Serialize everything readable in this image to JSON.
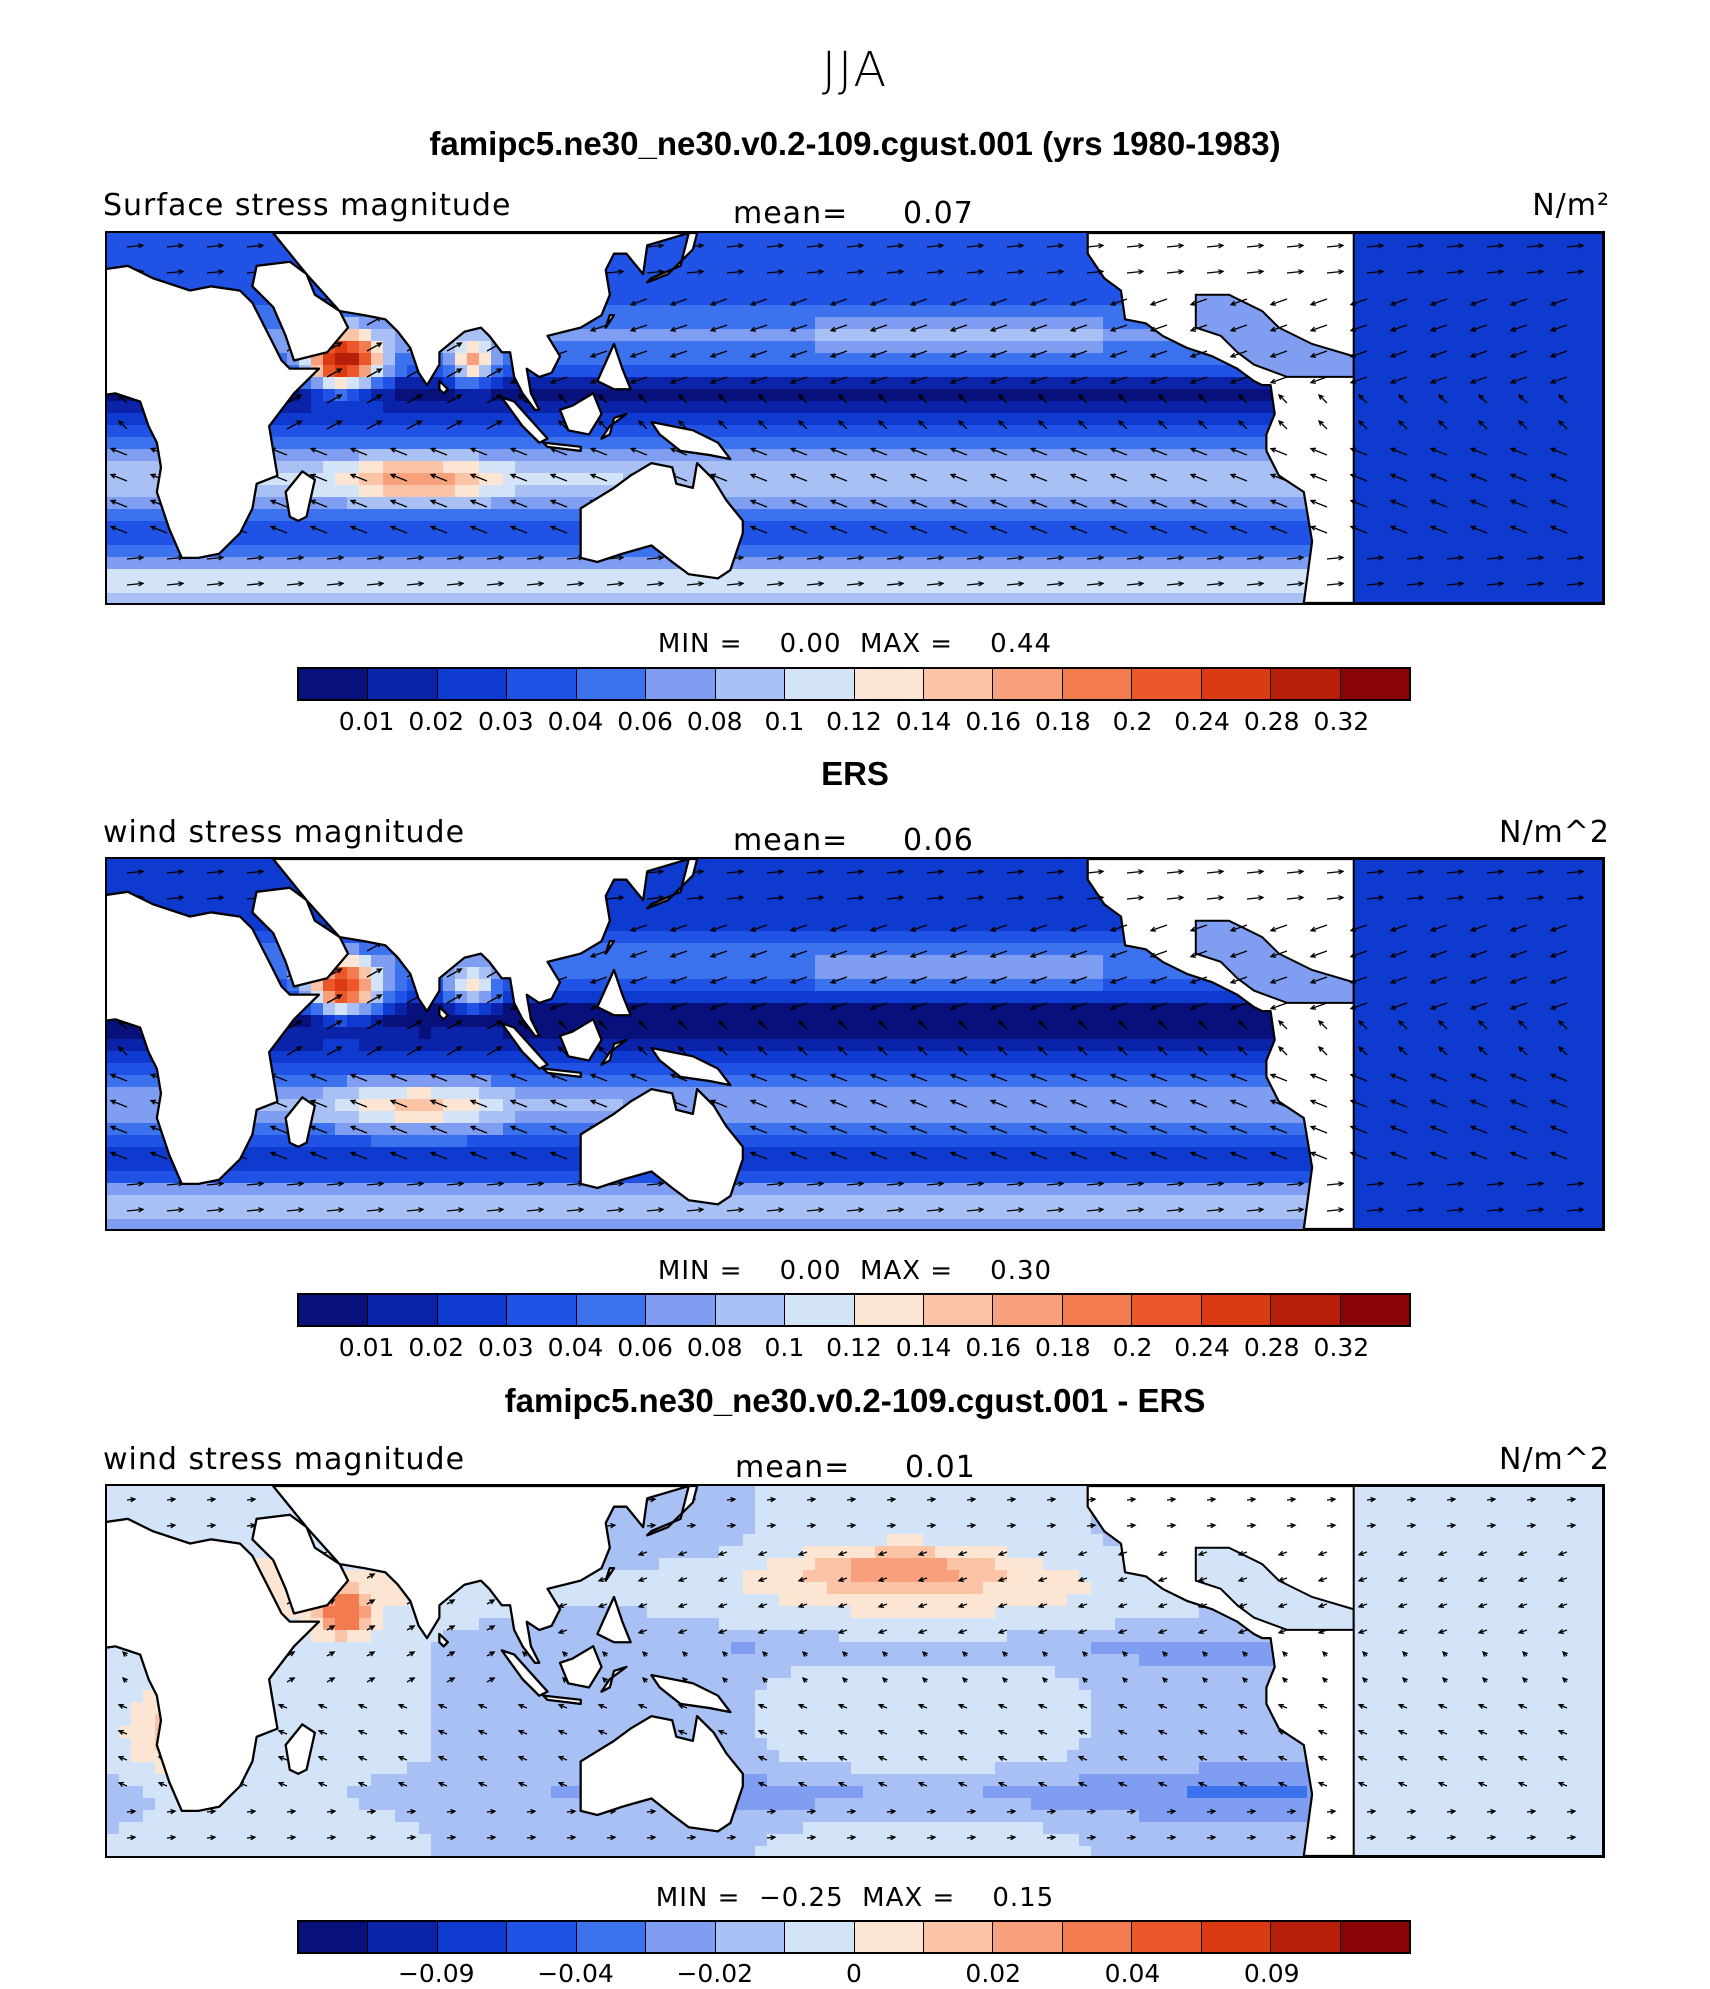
{
  "page_title": "JJA",
  "colors": {
    "scale": [
      "#08107c",
      "#0a23a8",
      "#0f3ad0",
      "#2052e6",
      "#3c72ee",
      "#7f9ef2",
      "#a9c0f4",
      "#d4e4f8",
      "#fde5d4",
      "#fbc4a6",
      "#f8a07c",
      "#f27b50",
      "#eb5729",
      "#dc3a12",
      "#b81f0b",
      "#8a0606"
    ],
    "land": "#ffffff",
    "coast": "#000000"
  },
  "panels": [
    {
      "title": "famipc5.ne30_ne30.v0.2-109.cgust.001 (yrs 1980-1983)",
      "label": "Surface stress magnitude",
      "mean_label": "mean=",
      "mean_value": "0.07",
      "units": "N/m²",
      "min_label": "MIN =",
      "min_value": "0.00",
      "max_label": "MAX =",
      "max_value": "0.44",
      "ticks": [
        "0.01",
        "0.02",
        "0.03",
        "0.04",
        "0.06",
        "0.08",
        "0.1",
        "0.12",
        "0.14",
        "0.16",
        "0.18",
        "0.2",
        "0.24",
        "0.28",
        "0.32"
      ]
    },
    {
      "title": "ERS",
      "label": "wind stress magnitude",
      "mean_label": "mean=",
      "mean_value": "0.06",
      "units": "N/m^2",
      "min_label": "MIN =",
      "min_value": "0.00",
      "max_label": "MAX =",
      "max_value": "0.30",
      "ticks": [
        "0.01",
        "0.02",
        "0.03",
        "0.04",
        "0.06",
        "0.08",
        "0.1",
        "0.12",
        "0.14",
        "0.16",
        "0.18",
        "0.2",
        "0.24",
        "0.28",
        "0.32"
      ]
    },
    {
      "title": "famipc5.ne30_ne30.v0.2-109.cgust.001 - ERS",
      "label": "wind stress magnitude",
      "mean_label": "mean=",
      "mean_value": "0.01",
      "units": "N/m^2",
      "min_label": "MIN =",
      "min_value": "−0.25",
      "max_label": "MAX =",
      "max_value": "0.15",
      "ticks_sparse": [
        "−0.09",
        "−0.04",
        "−0.02",
        "0",
        "0.02",
        "0.04",
        "0.09"
      ]
    }
  ]
}
